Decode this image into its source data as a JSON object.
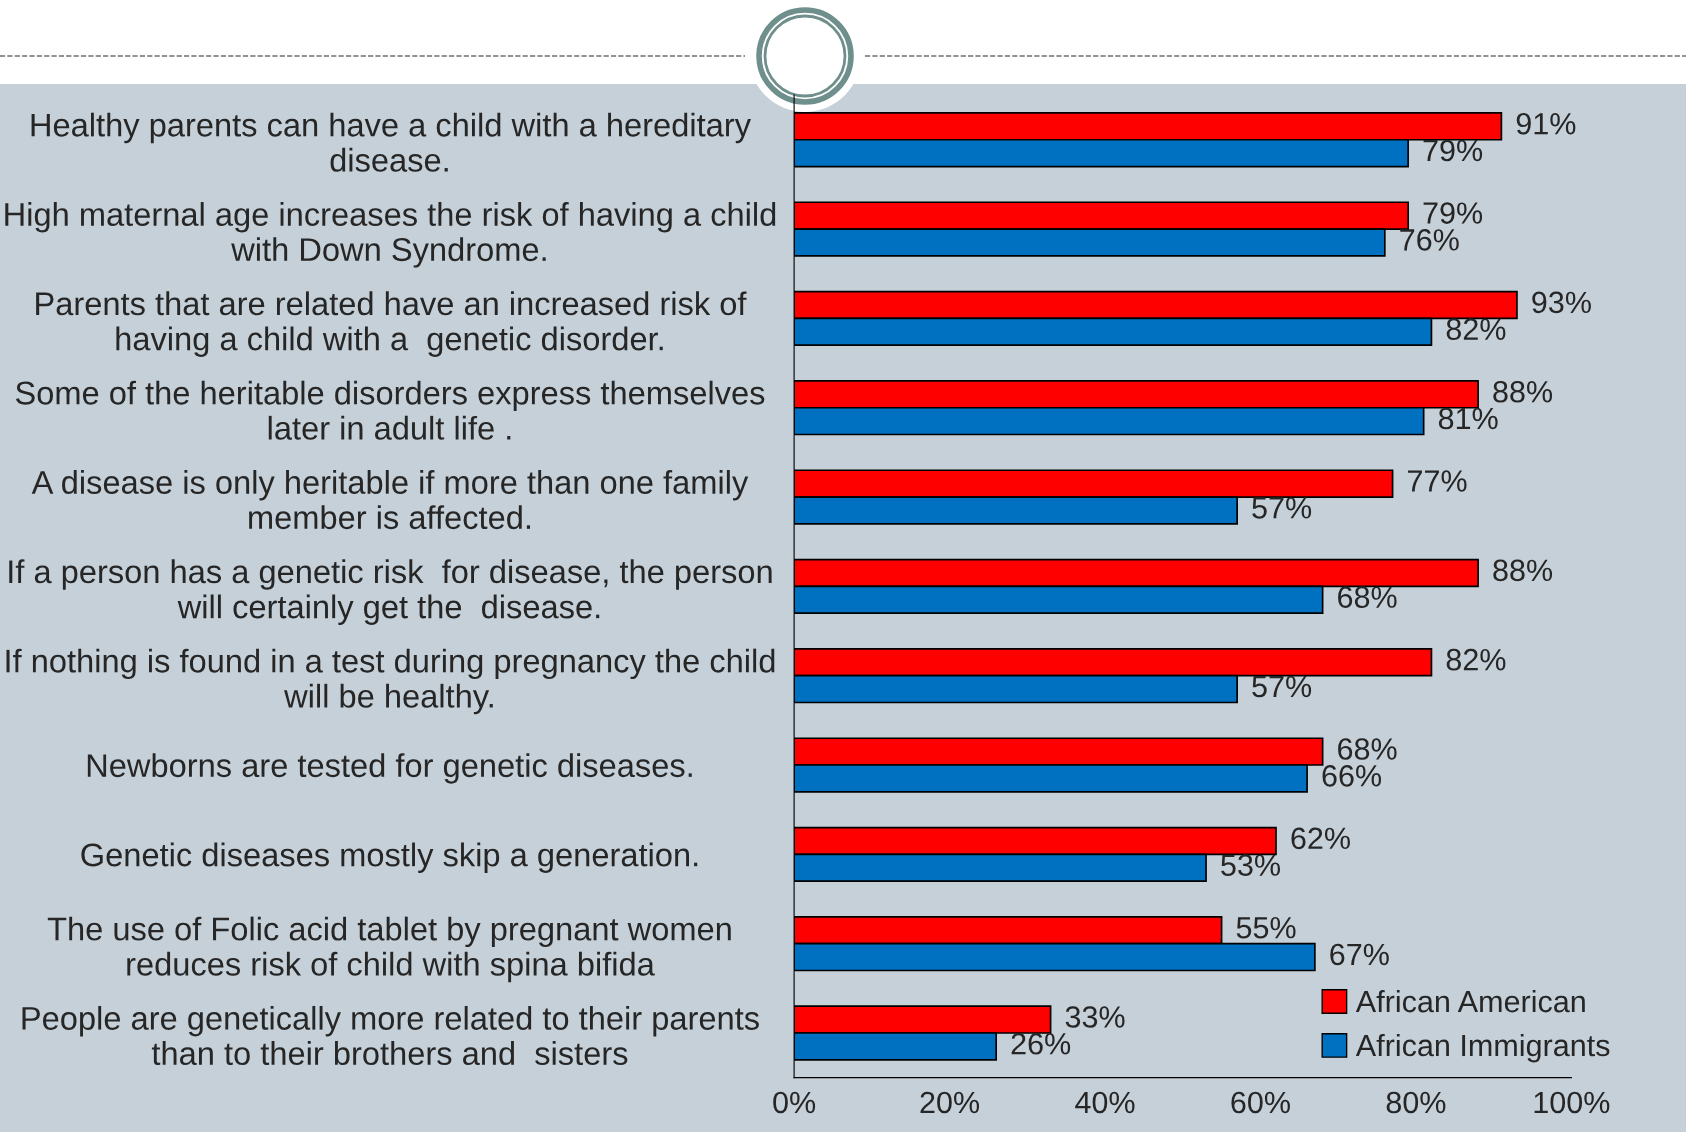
{
  "chart_data": {
    "type": "bar",
    "orientation": "horizontal",
    "categories": [
      "Healthy parents can have a child with a hereditary\ndisease.",
      "High maternal age increases the risk of having a child\nwith Down Syndrome.",
      "Parents that are related have an increased risk of\nhaving a child with a  genetic disorder.",
      "Some of the heritable disorders express themselves\nlater in adult life .",
      "A disease is only heritable if more than one family\nmember is affected.",
      "If a person has a genetic risk  for disease, the person\nwill certainly get the  disease.",
      "If nothing is found in a test during pregnancy the child\nwill be healthy.",
      "Newborns are tested for genetic diseases.",
      "Genetic diseases mostly skip a generation.",
      "The use of Folic acid tablet by pregnant women\nreduces risk of child with spina bifida",
      "People are genetically more related to their parents\nthan to their brothers and  sisters"
    ],
    "series": [
      {
        "name": "African American",
        "color": "#ff0000",
        "values": [
          91,
          79,
          93,
          88,
          77,
          88,
          82,
          68,
          62,
          55,
          33
        ],
        "value_labels": [
          "91%",
          "79%",
          "93%",
          "88%",
          "77%",
          "88%",
          "82%",
          "68%",
          "62%",
          "55%",
          "33%"
        ]
      },
      {
        "name": "African Immigrants",
        "color": "#0070c0",
        "values": [
          79,
          76,
          82,
          81,
          57,
          68,
          57,
          66,
          53,
          67,
          26
        ],
        "value_labels": [
          "79%",
          "76%",
          "82%",
          "81%",
          "57%",
          "68%",
          "57%",
          "66%",
          "53%",
          "67%",
          "26%"
        ]
      }
    ],
    "xlim": [
      0,
      100
    ],
    "xticks": [
      {
        "value": 0,
        "label": "0%"
      },
      {
        "value": 20,
        "label": "20%"
      },
      {
        "value": 40,
        "label": "40%"
      },
      {
        "value": 60,
        "label": "60%"
      },
      {
        "value": 80,
        "label": "80%"
      },
      {
        "value": 100,
        "label": "100%"
      }
    ],
    "grid": false,
    "legend": "bottom right"
  }
}
